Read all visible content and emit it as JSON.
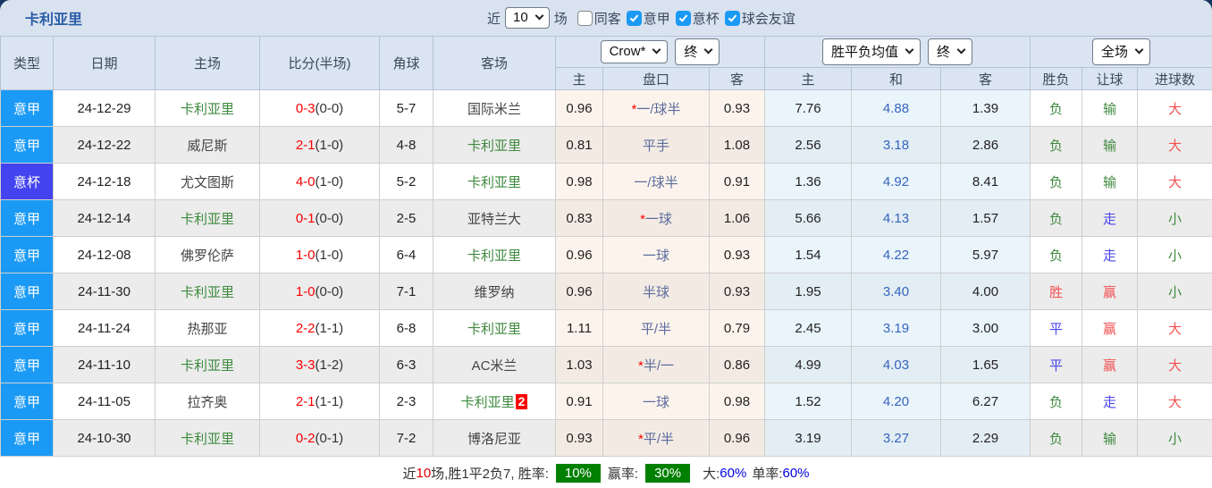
{
  "title": "卡利亚里",
  "topbar": {
    "recent_label": "近",
    "recent_value": "10",
    "matches_label": "场",
    "filters": [
      {
        "label": "同客",
        "checked": false
      },
      {
        "label": "意甲",
        "checked": true
      },
      {
        "label": "意杯",
        "checked": true
      },
      {
        "label": "球会友谊",
        "checked": true
      }
    ]
  },
  "colors": {
    "type_bg": {
      "意甲": "#1b9af5",
      "意杯": "#4343f0"
    },
    "result_text": {
      "胜": "#f25050",
      "平": "#4646ee",
      "负": "#3f8a3f",
      "赢": "#f25050",
      "走": "#4646ee",
      "输": "#3f8a3f",
      "大": "#f25050",
      "小": "#3f8a3f"
    },
    "focus_team_color": "#3f8a3f",
    "win_badge_bg": "#008000"
  },
  "table": {
    "focus_team": "卡利亚里",
    "left_headers": [
      "类型",
      "日期",
      "主场",
      "比分(半场)",
      "角球",
      "客场"
    ],
    "odds_header": {
      "bookmaker": "Crow*",
      "time": "终",
      "cols": [
        "主",
        "盘口",
        "客"
      ]
    },
    "avg_header": {
      "label": "胜平负均值",
      "time": "终",
      "cols": [
        "主",
        "和",
        "客"
      ]
    },
    "result_header": {
      "label": "全场",
      "cols": [
        "胜负",
        "让球",
        "进球数"
      ]
    },
    "rows": [
      {
        "type": "意甲",
        "date": "24-12-29",
        "home": "卡利亚里",
        "score": "0-3",
        "half": "(0-0)",
        "corner": "5-7",
        "away": "国际米兰",
        "away_badge": "",
        "handicap_star": true,
        "odds_home": "0.96",
        "handicap": "一/球半",
        "odds_away": "0.93",
        "avg_home": "7.76",
        "avg_draw": "4.88",
        "avg_away": "1.39",
        "wdl": "负",
        "handicap_result": "输",
        "goals": "大"
      },
      {
        "type": "意甲",
        "date": "24-12-22",
        "home": "威尼斯",
        "score": "2-1",
        "half": "(1-0)",
        "corner": "4-8",
        "away": "卡利亚里",
        "away_badge": "",
        "handicap_star": false,
        "odds_home": "0.81",
        "handicap": "平手",
        "odds_away": "1.08",
        "avg_home": "2.56",
        "avg_draw": "3.18",
        "avg_away": "2.86",
        "wdl": "负",
        "handicap_result": "输",
        "goals": "大"
      },
      {
        "type": "意杯",
        "date": "24-12-18",
        "home": "尤文图斯",
        "score": "4-0",
        "half": "(1-0)",
        "corner": "5-2",
        "away": "卡利亚里",
        "away_badge": "",
        "handicap_star": false,
        "odds_home": "0.98",
        "handicap": "一/球半",
        "odds_away": "0.91",
        "avg_home": "1.36",
        "avg_draw": "4.92",
        "avg_away": "8.41",
        "wdl": "负",
        "handicap_result": "输",
        "goals": "大"
      },
      {
        "type": "意甲",
        "date": "24-12-14",
        "home": "卡利亚里",
        "score": "0-1",
        "half": "(0-0)",
        "corner": "2-5",
        "away": "亚特兰大",
        "away_badge": "",
        "handicap_star": true,
        "odds_home": "0.83",
        "handicap": "一球",
        "odds_away": "1.06",
        "avg_home": "5.66",
        "avg_draw": "4.13",
        "avg_away": "1.57",
        "wdl": "负",
        "handicap_result": "走",
        "goals": "小"
      },
      {
        "type": "意甲",
        "date": "24-12-08",
        "home": "佛罗伦萨",
        "score": "1-0",
        "half": "(1-0)",
        "corner": "6-4",
        "away": "卡利亚里",
        "away_badge": "",
        "handicap_star": false,
        "odds_home": "0.96",
        "handicap": "一球",
        "odds_away": "0.93",
        "avg_home": "1.54",
        "avg_draw": "4.22",
        "avg_away": "5.97",
        "wdl": "负",
        "handicap_result": "走",
        "goals": "小"
      },
      {
        "type": "意甲",
        "date": "24-11-30",
        "home": "卡利亚里",
        "score": "1-0",
        "half": "(0-0)",
        "corner": "7-1",
        "away": "维罗纳",
        "away_badge": "",
        "handicap_star": false,
        "odds_home": "0.96",
        "handicap": "半球",
        "odds_away": "0.93",
        "avg_home": "1.95",
        "avg_draw": "3.40",
        "avg_away": "4.00",
        "wdl": "胜",
        "handicap_result": "赢",
        "goals": "小"
      },
      {
        "type": "意甲",
        "date": "24-11-24",
        "home": "热那亚",
        "score": "2-2",
        "half": "(1-1)",
        "corner": "6-8",
        "away": "卡利亚里",
        "away_badge": "",
        "handicap_star": false,
        "odds_home": "1.11",
        "handicap": "平/半",
        "odds_away": "0.79",
        "avg_home": "2.45",
        "avg_draw": "3.19",
        "avg_away": "3.00",
        "wdl": "平",
        "handicap_result": "赢",
        "goals": "大"
      },
      {
        "type": "意甲",
        "date": "24-11-10",
        "home": "卡利亚里",
        "score": "3-3",
        "half": "(1-2)",
        "corner": "6-3",
        "away": "AC米兰",
        "away_badge": "",
        "handicap_star": true,
        "odds_home": "1.03",
        "handicap": "半/一",
        "odds_away": "0.86",
        "avg_home": "4.99",
        "avg_draw": "4.03",
        "avg_away": "1.65",
        "wdl": "平",
        "handicap_result": "赢",
        "goals": "大"
      },
      {
        "type": "意甲",
        "date": "24-11-05",
        "home": "拉齐奥",
        "score": "2-1",
        "half": "(1-1)",
        "corner": "2-3",
        "away": "卡利亚里",
        "away_badge": "2",
        "handicap_star": false,
        "odds_home": "0.91",
        "handicap": "一球",
        "odds_away": "0.98",
        "avg_home": "1.52",
        "avg_draw": "4.20",
        "avg_away": "6.27",
        "wdl": "负",
        "handicap_result": "走",
        "goals": "大"
      },
      {
        "type": "意甲",
        "date": "24-10-30",
        "home": "卡利亚里",
        "score": "0-2",
        "half": "(0-1)",
        "corner": "7-2",
        "away": "博洛尼亚",
        "away_badge": "",
        "handicap_star": true,
        "odds_home": "0.93",
        "handicap": "平/半",
        "odds_away": "0.96",
        "avg_home": "3.19",
        "avg_draw": "3.27",
        "avg_away": "2.29",
        "wdl": "负",
        "handicap_result": "输",
        "goals": "小"
      }
    ]
  },
  "footer": {
    "part1": "近",
    "count": "10",
    "part2": "场,胜1平2负7, 胜率:",
    "win_rate": "10%",
    "part3": "赢率:",
    "handicap_rate": "30%",
    "part4": "大:",
    "over_rate": "60%",
    "part5": "单率:",
    "odd_rate": "60%"
  }
}
